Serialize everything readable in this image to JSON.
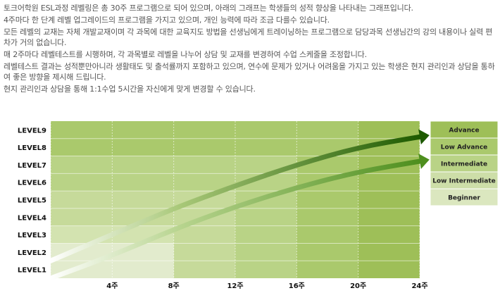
{
  "intro": {
    "line1": "토크어학원 ESL과정 레벨링은 총 30주 프로그램으로 되어 있으며, 아래의 그래프는 학생들의 성적 향상을 나타내는 그래프입니다.",
    "line2": "4주마다 한 단계 레벨 업그레이드의 프로그램을 가지고 있으며, 개인 능력에 따라 조금 다를수 있습니다.",
    "line3": "모든 레벨의 교재는 자체 개발교재이며 각 과목에 대한 교육지도 방법을 선생님에게 트레이닝하는 프로그램으로 담당과목 선생님간의 강의 내용이나 실력 편차가 거의 없습니다.",
    "line4": "매 2주마다 레벨테스트를 시행하며, 각 과목별로 레벨을 나누어 상담 및 교재를 변경하여 수업 스케줄을 조정합니다.",
    "line5": "레벨테스트 결과는 성적뿐만아니라 생활태도 및 출석률까지 포함하고 있으며, 연수에 문제가 있거나 어려움을 가지고 있는 학생은 현지 관리인과 상담을 통하여 좋은 방향을 제시해 드립니다.",
    "line6": "현지 관리인과 상담을 통해 1:1수업 5시간을 자신에게 맞게 변경할 수 있습니다."
  },
  "chart_data": {
    "type": "line",
    "levels": [
      "LEVEL1",
      "LEVEL2",
      "LEVEL3",
      "LEVEL4",
      "LEVEL5",
      "LEVEL6",
      "LEVEL7",
      "LEVEL8",
      "LEVEL9"
    ],
    "x_ticks": [
      "4주",
      "8주",
      "12주",
      "16주",
      "20주",
      "24주"
    ],
    "x_tick_values": [
      4,
      8,
      12,
      16,
      20,
      24
    ],
    "xlim": [
      0,
      24
    ],
    "ylim": [
      0.5,
      9.5
    ],
    "series": [
      {
        "points": [
          [
            0,
            1.5
          ],
          [
            4,
            3.0
          ],
          [
            8,
            4.5
          ],
          [
            12,
            5.8
          ],
          [
            16,
            7.0
          ],
          [
            20,
            8.0
          ],
          [
            24,
            8.6
          ]
        ],
        "color": "#1e5a00"
      },
      {
        "points": [
          [
            0,
            0.5
          ],
          [
            4,
            1.8
          ],
          [
            8,
            3.3
          ],
          [
            12,
            4.6
          ],
          [
            16,
            5.7
          ],
          [
            20,
            6.6
          ],
          [
            24,
            7.2
          ]
        ],
        "color": "#4e8f1e"
      }
    ],
    "legend": [
      "Advance",
      "Low Advance",
      "Intermediate",
      "Low Intermediate",
      "Beginner"
    ],
    "legend_colors": [
      "#9ebf58",
      "#aac96c",
      "#b9d386",
      "#cddea8",
      "#dbe7bf"
    ],
    "grid": true
  }
}
